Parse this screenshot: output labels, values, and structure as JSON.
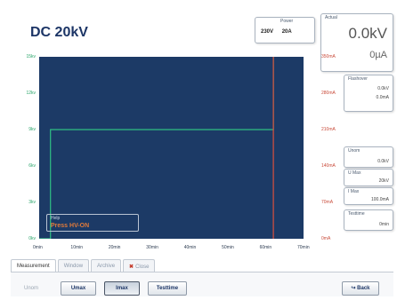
{
  "header": {
    "title": "DC 20kV"
  },
  "power": {
    "label": "Power",
    "voltage": "230V",
    "current": "20A"
  },
  "actual": {
    "label": "Actual",
    "voltage": "0.0kV",
    "current": "0µA"
  },
  "side_panels": {
    "flashover": {
      "label": "Flashover",
      "value1": "0.0kV",
      "value2": "0.0mA"
    },
    "unom": {
      "label": "Unom",
      "value": "0.0kV"
    },
    "umax": {
      "label": "U Max",
      "value": "20kV"
    },
    "imax": {
      "label": "I Max",
      "value": "100.0mA"
    },
    "testtime": {
      "label": "Testtime",
      "value": "0min"
    }
  },
  "chart_data": {
    "type": "line",
    "x_ticks": [
      "0min",
      "10min",
      "20min",
      "30min",
      "40min",
      "50min",
      "60min",
      "70min"
    ],
    "y_left_ticks": [
      "0kv",
      "3kv",
      "6kv",
      "9kv",
      "12kv",
      "15kv"
    ],
    "y_right_ticks": [
      "0mA",
      "70mA",
      "140mA",
      "210mA",
      "280mA",
      "350mA"
    ],
    "xlim": [
      0,
      70
    ],
    "ylim_left": [
      0,
      15
    ],
    "ylim_right": [
      0,
      350
    ],
    "series": [
      {
        "color": "#2fbf84",
        "x": [
          0,
          3,
          3,
          62,
          62
        ],
        "y": [
          0,
          0,
          9,
          9,
          15
        ]
      },
      {
        "color": "#d8503d",
        "x": [
          62,
          62
        ],
        "y": [
          0,
          15
        ]
      }
    ],
    "colors": {
      "plot_bg": "#1c3a66"
    }
  },
  "hint": {
    "label": "Help",
    "text": "Press HV-ON"
  },
  "tabs": [
    {
      "label": "Measurement"
    },
    {
      "label": "Window"
    },
    {
      "label": "Archive"
    },
    {
      "label": "Close"
    }
  ],
  "toolbar": {
    "unom": "Unom",
    "umax": "Umax",
    "imax": "Imax",
    "testtime": "Testtime",
    "back": "Back"
  }
}
